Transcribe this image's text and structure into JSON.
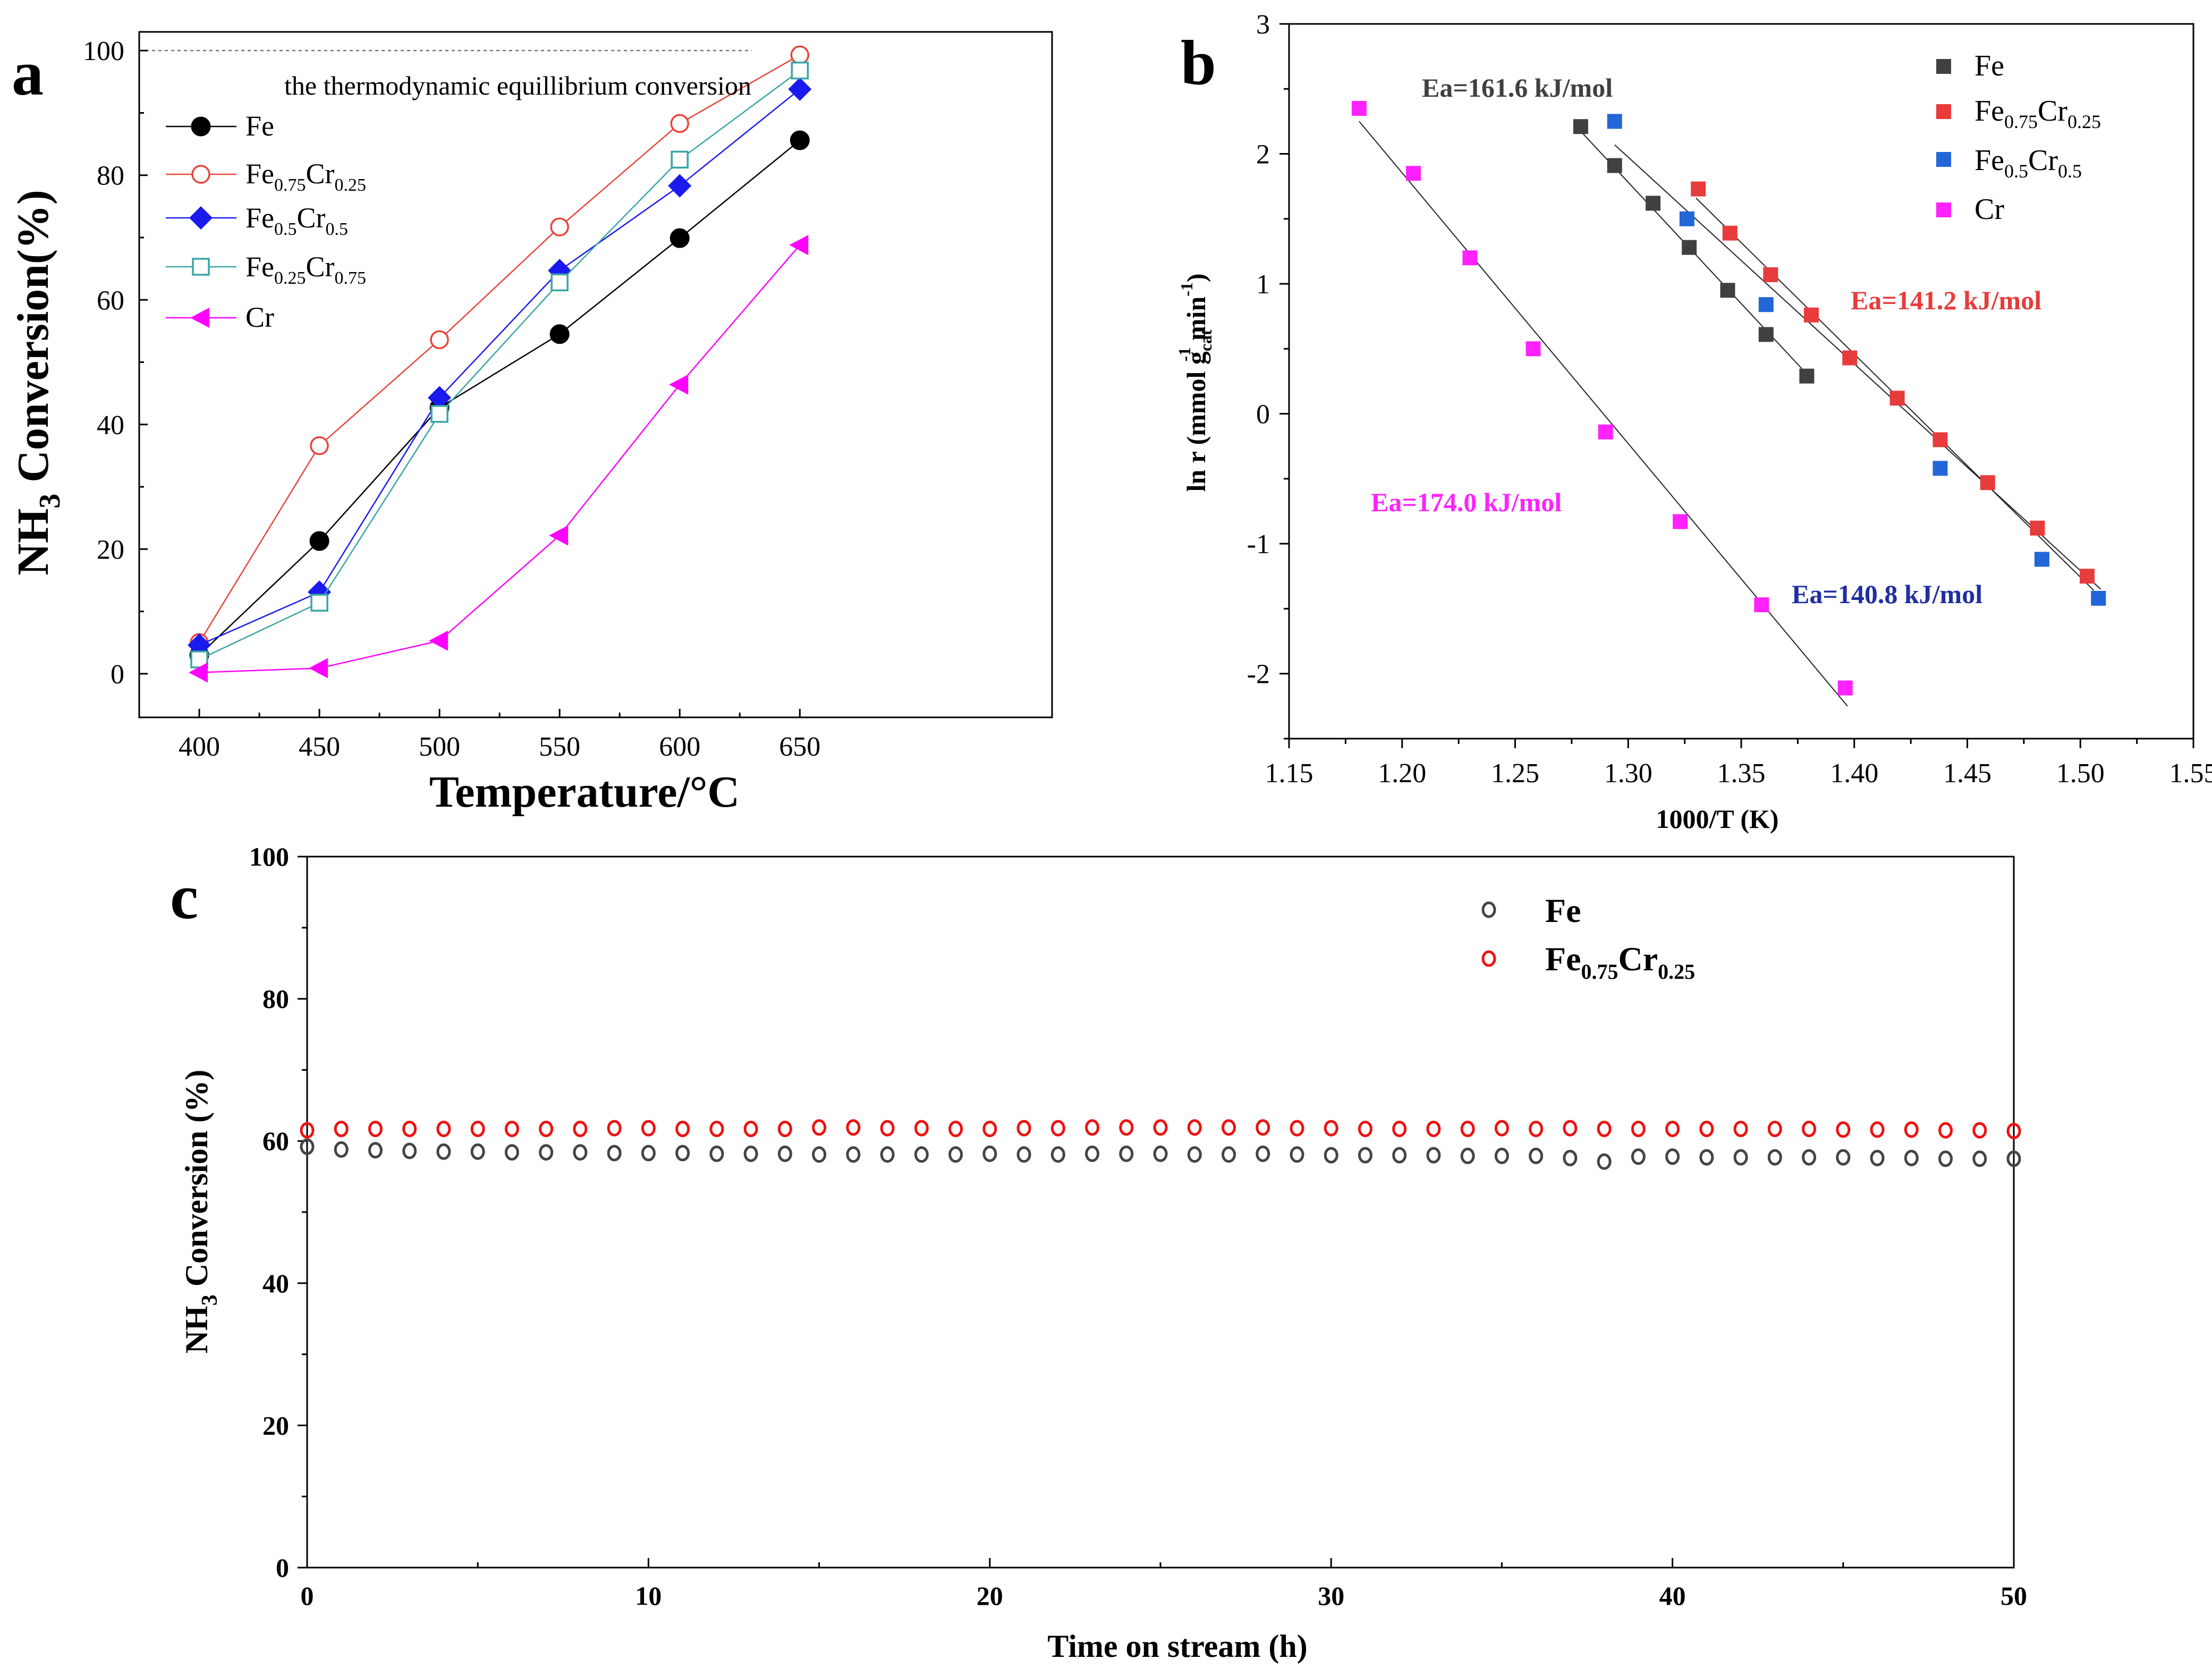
{
  "colors": {
    "Fe": "#000000",
    "Fe075Cr025": "#e8453c",
    "Fe05Cr05": "#1a1aee",
    "Fe025Cr075": "#3aa5a5",
    "Cr": "#ff00ff",
    "b_Fe": "#404040",
    "b_FeCr075": "#e83b3b",
    "b_FeCr05": "#2266d8",
    "b_Cr": "#ff22ff",
    "c_Fe": "#444444",
    "c_FeCr": "#ee1111",
    "ea_b_blue": "#1f2fa0"
  },
  "labels": {
    "panel_a": "a",
    "panel_b": "b",
    "panel_c": "c"
  },
  "legend_parts": {
    "fe": "Fe",
    "cr": "Cr",
    "sub_075": "0.75",
    "sub_025": "0.25",
    "sub_05": "0.5",
    "nh": "NH",
    "sub_3": "3",
    "sub_cat": "cat",
    "sup_neg1": "-1"
  },
  "chart_data": [
    {
      "id": "a",
      "type": "line",
      "title": "",
      "xlabel": "Temperature/°C",
      "ylabel": "NH3 Conversion(%)",
      "ylabel_tail": " Conversion(%)",
      "xlim": [
        375,
        755
      ],
      "ylim": [
        -7,
        103
      ],
      "xticks": [
        400,
        450,
        500,
        550,
        600,
        650
      ],
      "yticks": [
        0,
        20,
        40,
        60,
        80,
        100
      ],
      "x": [
        400,
        450,
        500,
        550,
        600,
        650
      ],
      "equilibrium_line": {
        "y": 100,
        "x_end": 630,
        "label": "the thermodynamic equillibrium conversion"
      },
      "series": [
        {
          "name": "Fe",
          "color_key": "Fe",
          "marker": "circle-filled",
          "values": [
            3.0,
            21.3,
            42.7,
            54.5,
            69.9,
            85.6
          ]
        },
        {
          "name": "Fe0.75Cr0.25",
          "color_key": "Fe075Cr025",
          "marker": "circle-open",
          "values": [
            5.0,
            36.6,
            53.6,
            71.7,
            88.3,
            99.3
          ]
        },
        {
          "name": "Fe0.5Cr0.5",
          "color_key": "Fe05Cr05",
          "marker": "diamond-filled",
          "values": [
            4.6,
            13.1,
            44.3,
            64.7,
            78.3,
            93.8
          ]
        },
        {
          "name": "Fe0.25Cr0.75",
          "color_key": "Fe025Cr075",
          "marker": "square-open",
          "values": [
            2.3,
            11.4,
            41.7,
            62.8,
            82.5,
            96.8
          ]
        },
        {
          "name": "Cr",
          "color_key": "Cr",
          "marker": "triangle-left",
          "values": [
            0.2,
            0.9,
            5.3,
            22.2,
            46.4,
            68.8
          ]
        }
      ]
    },
    {
      "id": "b",
      "type": "scatter",
      "xlabel": "1000/T (K)",
      "ylabel": "ln r (mmol gcat-1 min-1)",
      "ylabel_head": "ln r (mmol g",
      "ylabel_mid": " min",
      "ylabel_tail": ")",
      "xlim": [
        1.15,
        1.55
      ],
      "ylim": [
        -2.5,
        3
      ],
      "xticks": [
        "1.15",
        "1.20",
        "1.25",
        "1.30",
        "1.35",
        "1.40",
        "1.45",
        "1.50",
        "1.55"
      ],
      "yticks": [
        "-2",
        "-1",
        "0",
        "1",
        "2",
        "3"
      ],
      "series": [
        {
          "name": "Fe",
          "color_key": "b_Fe",
          "x": [
            1.279,
            1.294,
            1.311,
            1.327,
            1.344,
            1.361,
            1.379
          ],
          "y": [
            2.21,
            1.91,
            1.62,
            1.28,
            0.95,
            0.61,
            0.29
          ],
          "fit": [
            [
              1.276,
              2.23
            ],
            [
              1.382,
              0.25
            ]
          ]
        },
        {
          "name": "Fe0.75Cr0.25",
          "color_key": "b_FeCr075",
          "x": [
            1.331,
            1.345,
            1.363,
            1.381,
            1.398,
            1.419,
            1.438,
            1.459,
            1.481,
            1.503
          ],
          "y": [
            1.73,
            1.39,
            1.07,
            0.76,
            0.43,
            0.12,
            -0.2,
            -0.53,
            -0.88,
            -1.25
          ],
          "fit": [
            [
              1.33,
              1.66
            ],
            [
              1.506,
              -1.36
            ]
          ]
        },
        {
          "name": "Fe0.5Cr0.5",
          "color_key": "b_FeCr05",
          "x": [
            1.294,
            1.326,
            1.361,
            1.438,
            1.483,
            1.508
          ],
          "y": [
            2.25,
            1.5,
            0.84,
            -0.42,
            -1.12,
            -1.42
          ],
          "fit": [
            [
              1.294,
              2.07
            ],
            [
              1.509,
              -1.35
            ]
          ]
        },
        {
          "name": "Cr",
          "color_key": "b_Cr",
          "x": [
            1.181,
            1.205,
            1.23,
            1.258,
            1.29,
            1.323,
            1.359,
            1.396
          ],
          "y": [
            2.35,
            1.85,
            1.2,
            0.5,
            -0.14,
            -0.83,
            -1.47,
            -2.11
          ],
          "fit": [
            [
              1.181,
              2.25
            ],
            [
              1.397,
              -2.25
            ]
          ]
        }
      ],
      "annotations": [
        {
          "text": "Ea=161.6 kJ/mol",
          "color_key": "b_Fe"
        },
        {
          "text": "Ea=141.2 kJ/mol",
          "color_key": "b_FeCr075"
        },
        {
          "text": "Ea=174.0 kJ/mol",
          "color_key": "b_Cr"
        },
        {
          "text": "Ea=140.8 kJ/mol",
          "color_key": "ea_b_blue"
        }
      ]
    },
    {
      "id": "c",
      "type": "scatter",
      "xlabel": "Time on stream (h)",
      "ylabel": "NH3 Conversion (%)",
      "ylabel_tail": " Conversion (%)",
      "xlim": [
        0,
        50
      ],
      "ylim": [
        0,
        100
      ],
      "xticks": [
        0,
        10,
        20,
        30,
        40,
        50
      ],
      "yticks": [
        0,
        20,
        40,
        60,
        80,
        100
      ],
      "x": [
        0,
        1,
        2,
        3,
        4,
        5,
        6,
        7,
        8,
        9,
        10,
        11,
        12,
        13,
        14,
        15,
        16,
        17,
        18,
        19,
        20,
        21,
        22,
        23,
        24,
        25,
        26,
        27,
        28,
        29,
        30,
        31,
        32,
        33,
        34,
        35,
        36,
        37,
        38,
        39,
        40,
        41,
        42,
        43,
        44,
        45,
        46,
        47,
        48,
        49,
        50
      ],
      "series": [
        {
          "name": "Fe",
          "color_key": "c_Fe",
          "values": [
            59.2,
            58.8,
            58.7,
            58.6,
            58.5,
            58.5,
            58.4,
            58.4,
            58.4,
            58.3,
            58.3,
            58.3,
            58.2,
            58.2,
            58.2,
            58.1,
            58.1,
            58.1,
            58.1,
            58.1,
            58.2,
            58.1,
            58.1,
            58.2,
            58.2,
            58.2,
            58.1,
            58.1,
            58.2,
            58.1,
            58.0,
            58.0,
            58.0,
            58.0,
            57.9,
            57.9,
            57.9,
            57.6,
            57.1,
            57.8,
            57.8,
            57.7,
            57.7,
            57.7,
            57.7,
            57.7,
            57.6,
            57.6,
            57.5,
            57.5,
            57.5
          ]
        },
        {
          "name": "Fe0.75Cr0.25",
          "color_key": "c_FeCr",
          "values": [
            61.5,
            61.7,
            61.7,
            61.7,
            61.7,
            61.7,
            61.7,
            61.7,
            61.7,
            61.8,
            61.8,
            61.7,
            61.7,
            61.7,
            61.7,
            61.9,
            61.9,
            61.8,
            61.8,
            61.7,
            61.7,
            61.8,
            61.8,
            61.9,
            61.9,
            61.9,
            61.9,
            61.9,
            61.9,
            61.8,
            61.8,
            61.7,
            61.7,
            61.7,
            61.7,
            61.8,
            61.7,
            61.8,
            61.7,
            61.7,
            61.7,
            61.7,
            61.7,
            61.7,
            61.7,
            61.6,
            61.6,
            61.6,
            61.5,
            61.5,
            61.4
          ]
        }
      ]
    }
  ]
}
